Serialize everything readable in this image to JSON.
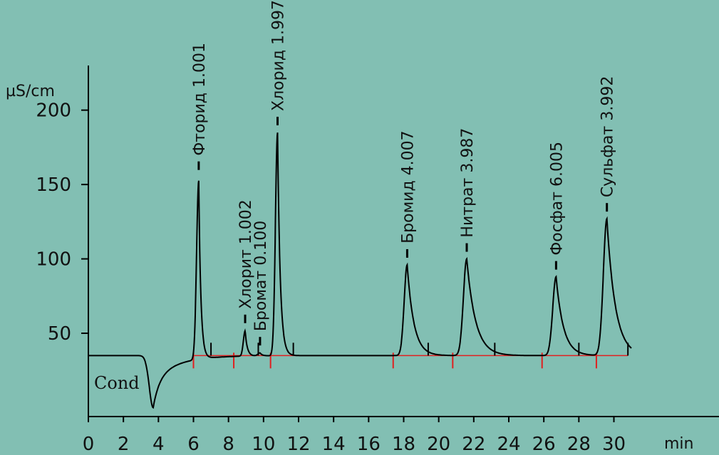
{
  "chart_data": {
    "type": "line",
    "title": "",
    "xlabel": "min",
    "ylabel": "µS/cm",
    "detector_label": "Cond",
    "xlim": [
      0,
      36
    ],
    "ylim": [
      -6,
      230
    ],
    "x_ticks": [
      0,
      2,
      4,
      6,
      8,
      10,
      12,
      14,
      16,
      18,
      20,
      22,
      24,
      26,
      28,
      30
    ],
    "y_ticks": [
      50,
      100,
      150,
      200
    ],
    "baseline": 35,
    "dip": {
      "x": 3.7,
      "y": 0
    },
    "peaks": [
      {
        "name": "Фторид",
        "amount": "1.001",
        "rt": 6.3,
        "height": 155,
        "sigma": 0.12,
        "tail": 0.12
      },
      {
        "name": "Хлорит",
        "amount": "1.002",
        "rt": 8.95,
        "height": 52,
        "sigma": 0.1,
        "tail": 0.12
      },
      {
        "name": "Бромат",
        "amount": "0.100",
        "rt": 9.8,
        "height": 37,
        "sigma": 0.12,
        "tail": 0.12
      },
      {
        "name": "Хлорид",
        "amount": "1.997",
        "rt": 10.8,
        "height": 185,
        "sigma": 0.12,
        "tail": 0.15
      },
      {
        "name": "Бромид",
        "amount": "4.007",
        "rt": 18.2,
        "height": 96,
        "sigma": 0.17,
        "tail": 0.38
      },
      {
        "name": "Нитрат",
        "amount": "3.987",
        "rt": 21.6,
        "height": 100,
        "sigma": 0.19,
        "tail": 0.5
      },
      {
        "name": "Фосфат",
        "amount": "6.005",
        "rt": 26.7,
        "height": 88,
        "sigma": 0.19,
        "tail": 0.42
      },
      {
        "name": "Сульфат",
        "amount": "3.992",
        "rt": 29.6,
        "height": 127,
        "sigma": 0.2,
        "tail": 0.48
      }
    ],
    "integration_marks_red": [
      6.0,
      8.3,
      10.4,
      17.4,
      20.8,
      25.9,
      29.0
    ],
    "integration_marks_black": [
      7.0,
      9.7,
      11.7,
      19.4,
      23.2,
      28.0,
      30.8
    ],
    "colors": {
      "background": "#82bfb3",
      "trace": "#000000",
      "integration": "#e02020",
      "axis": "#000000"
    }
  }
}
